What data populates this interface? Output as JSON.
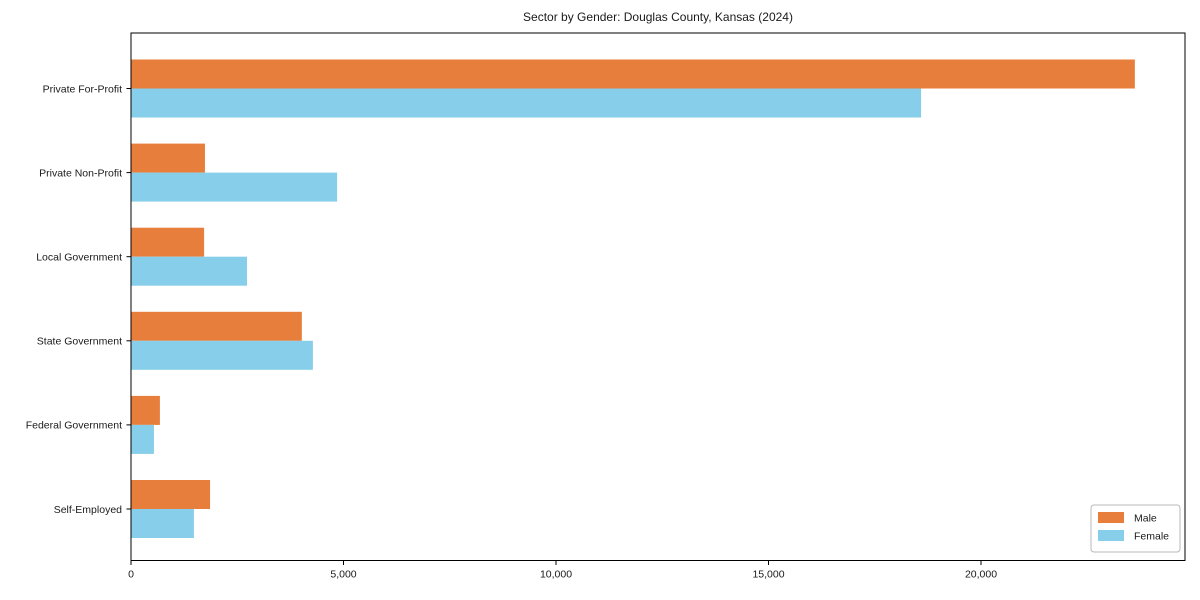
{
  "title": "Sector by Gender: Douglas County, Kansas (2024)",
  "chart_data": {
    "type": "bar",
    "orientation": "horizontal",
    "title": "Sector by Gender: Douglas County, Kansas (2024)",
    "categories": [
      "Private For-Profit",
      "Private Non-Profit",
      "Local Government",
      "State Government",
      "Federal Government",
      "Self-Employed"
    ],
    "series": [
      {
        "name": "Male",
        "color": "#e87e3b",
        "values": [
          23620,
          1740,
          1720,
          4020,
          680,
          1860
        ]
      },
      {
        "name": "Female",
        "color": "#87ceea",
        "values": [
          18590,
          4850,
          2730,
          4280,
          540,
          1480
        ]
      }
    ],
    "xlabel": "",
    "ylabel": "",
    "xlim": [
      0,
      24800
    ],
    "xticks": [
      {
        "value": 0,
        "label": "0"
      },
      {
        "value": 5000,
        "label": "5,000"
      },
      {
        "value": 10000,
        "label": "10,000"
      },
      {
        "value": 15000,
        "label": "15,000"
      },
      {
        "value": 20000,
        "label": "20,000"
      }
    ],
    "grid": false,
    "legend_position": "lower right"
  },
  "legend": {
    "items": [
      {
        "label": "Male",
        "color": "#e87e3b"
      },
      {
        "label": "Female",
        "color": "#87ceea"
      }
    ]
  },
  "colors": {
    "male": "#e87e3b",
    "female": "#87ceea",
    "axis": "#000000",
    "text": "#1a1a1a",
    "legend_border": "#b8b8b8",
    "background": "#ffffff"
  }
}
